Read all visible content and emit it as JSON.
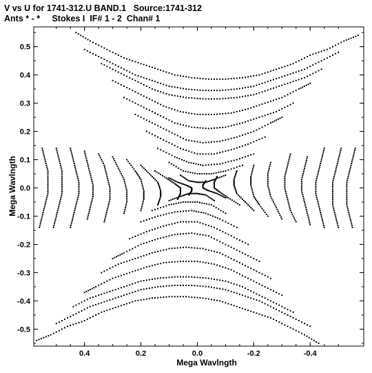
{
  "title_line1": "V vs U for 1741-312.U BAND.1   Source:1741-312",
  "title_line2": "Ants * - *     Stokes I  IF# 1 - 2  Chan# 1",
  "chart_data": {
    "type": "scatter",
    "title": "V vs U for 1741-312.U BAND.1   Source:1741-312",
    "subtitle": "Ants * - *     Stokes I  IF# 1 - 2  Chan# 1",
    "xlabel": "Mega Wavlngth",
    "ylabel": "Mega Wavlngth",
    "xlim": [
      0.58,
      -0.59
    ],
    "ylim": [
      -0.56,
      0.57
    ],
    "x_inverted": true,
    "xticks": [
      0.4,
      0.2,
      0.0,
      -0.2,
      -0.4
    ],
    "xtick_labels": [
      "0.4",
      "0.2",
      "0.0",
      "-0.2",
      "-0.4"
    ],
    "yticks": [
      0.5,
      0.4,
      0.3,
      0.2,
      0.1,
      0.0,
      -0.1,
      -0.2,
      -0.3,
      -0.4,
      -0.5
    ],
    "ytick_labels": [
      "0.5",
      "0.4",
      "0.3",
      "0.2",
      "0.1",
      "0.0",
      "-0.1",
      "-0.2",
      "-0.3",
      "-0.4",
      "-0.5"
    ],
    "grid": false,
    "marker_color": "#000000",
    "symmetry": "point-symmetric about origin (u,v) and (-u,-v)",
    "series": [
      {
        "tracks": [
          {
            "points": [
              [
                0.43,
                0.55
              ],
              [
                0.38,
                0.52
              ],
              [
                0.32,
                0.49
              ],
              [
                0.26,
                0.46
              ],
              [
                0.2,
                0.44
              ],
              [
                0.14,
                0.42
              ],
              [
                0.08,
                0.4
              ],
              [
                0.02,
                0.39
              ],
              [
                -0.04,
                0.385
              ],
              [
                -0.1,
                0.385
              ],
              [
                -0.16,
                0.39
              ],
              [
                -0.22,
                0.4
              ],
              [
                -0.28,
                0.42
              ],
              [
                -0.34,
                0.44
              ],
              [
                -0.4,
                0.47
              ],
              [
                -0.46,
                0.49
              ],
              [
                -0.52,
                0.52
              ],
              [
                -0.57,
                0.54
              ]
            ]
          },
          {
            "points": [
              [
                0.4,
                0.49
              ],
              [
                0.34,
                0.46
              ],
              [
                0.28,
                0.43
              ],
              [
                0.22,
                0.4
              ],
              [
                0.16,
                0.38
              ],
              [
                0.1,
                0.36
              ],
              [
                0.04,
                0.35
              ],
              [
                -0.02,
                0.345
              ],
              [
                -0.08,
                0.345
              ],
              [
                -0.14,
                0.35
              ],
              [
                -0.2,
                0.36
              ],
              [
                -0.26,
                0.38
              ],
              [
                -0.32,
                0.4
              ],
              [
                -0.38,
                0.42
              ],
              [
                -0.44,
                0.45
              ],
              [
                -0.5,
                0.48
              ]
            ]
          },
          {
            "points": [
              [
                0.34,
                0.44
              ],
              [
                0.28,
                0.41
              ],
              [
                0.22,
                0.38
              ],
              [
                0.16,
                0.35
              ],
              [
                0.1,
                0.33
              ],
              [
                0.04,
                0.32
              ],
              [
                -0.02,
                0.315
              ],
              [
                -0.08,
                0.315
              ],
              [
                -0.14,
                0.32
              ],
              [
                -0.2,
                0.33
              ],
              [
                -0.26,
                0.35
              ],
              [
                -0.32,
                0.37
              ],
              [
                -0.38,
                0.39
              ],
              [
                -0.44,
                0.42
              ]
            ]
          },
          {
            "points": [
              [
                0.3,
                0.38
              ],
              [
                0.24,
                0.35
              ],
              [
                0.18,
                0.32
              ],
              [
                0.12,
                0.29
              ],
              [
                0.06,
                0.27
              ],
              [
                0.0,
                0.26
              ],
              [
                -0.06,
                0.26
              ],
              [
                -0.12,
                0.265
              ],
              [
                -0.18,
                0.28
              ],
              [
                -0.24,
                0.3
              ],
              [
                -0.3,
                0.32
              ],
              [
                -0.36,
                0.35
              ],
              [
                -0.4,
                0.37
              ]
            ]
          },
          {
            "points": [
              [
                0.26,
                0.32
              ],
              [
                0.2,
                0.29
              ],
              [
                0.14,
                0.26
              ],
              [
                0.08,
                0.23
              ],
              [
                0.02,
                0.215
              ],
              [
                -0.04,
                0.21
              ],
              [
                -0.1,
                0.215
              ],
              [
                -0.16,
                0.23
              ],
              [
                -0.22,
                0.25
              ],
              [
                -0.28,
                0.27
              ],
              [
                -0.34,
                0.3
              ]
            ]
          },
          {
            "points": [
              [
                0.22,
                0.26
              ],
              [
                0.16,
                0.23
              ],
              [
                0.1,
                0.2
              ],
              [
                0.04,
                0.17
              ],
              [
                -0.02,
                0.16
              ],
              [
                -0.08,
                0.165
              ],
              [
                -0.14,
                0.18
              ],
              [
                -0.2,
                0.2
              ],
              [
                -0.26,
                0.23
              ],
              [
                -0.3,
                0.25
              ]
            ]
          },
          {
            "points": [
              [
                0.18,
                0.2
              ],
              [
                0.12,
                0.17
              ],
              [
                0.06,
                0.14
              ],
              [
                0.0,
                0.12
              ],
              [
                -0.06,
                0.12
              ],
              [
                -0.12,
                0.135
              ],
              [
                -0.18,
                0.155
              ],
              [
                -0.24,
                0.18
              ]
            ]
          },
          {
            "points": [
              [
                0.14,
                0.14
              ],
              [
                0.08,
                0.11
              ],
              [
                0.03,
                0.09
              ],
              [
                -0.02,
                0.08
              ],
              [
                -0.08,
                0.085
              ],
              [
                -0.14,
                0.1
              ],
              [
                -0.2,
                0.12
              ]
            ]
          },
          {
            "points": [
              [
                0.1,
                0.09
              ],
              [
                0.05,
                0.06
              ],
              [
                0.0,
                0.05
              ],
              [
                -0.05,
                0.05
              ],
              [
                -0.1,
                0.06
              ],
              [
                -0.16,
                0.08
              ]
            ]
          },
          {
            "points": [
              [
                0.06,
                0.045
              ],
              [
                0.03,
                0.025
              ],
              [
                0.0,
                0.02
              ],
              [
                -0.03,
                0.02
              ],
              [
                -0.06,
                0.03
              ],
              [
                -0.1,
                0.045
              ]
            ]
          },
          {
            "points": [
              [
                0.55,
                0.14
              ],
              [
                0.54,
                0.1
              ],
              [
                0.53,
                0.06
              ],
              [
                0.53,
                0.02
              ],
              [
                0.53,
                -0.02
              ],
              [
                0.54,
                -0.06
              ],
              [
                0.55,
                -0.1
              ],
              [
                0.56,
                -0.14
              ]
            ]
          },
          {
            "points": [
              [
                0.5,
                0.14
              ],
              [
                0.49,
                0.1
              ],
              [
                0.48,
                0.06
              ],
              [
                0.48,
                0.02
              ],
              [
                0.48,
                -0.02
              ],
              [
                0.49,
                -0.06
              ],
              [
                0.5,
                -0.1
              ],
              [
                0.51,
                -0.14
              ]
            ]
          },
          {
            "points": [
              [
                0.45,
                0.14
              ],
              [
                0.44,
                0.1
              ],
              [
                0.43,
                0.06
              ],
              [
                0.42,
                0.02
              ],
              [
                0.42,
                -0.02
              ],
              [
                0.43,
                -0.06
              ],
              [
                0.44,
                -0.1
              ],
              [
                0.45,
                -0.14
              ]
            ]
          },
          {
            "points": [
              [
                0.4,
                0.13
              ],
              [
                0.39,
                0.09
              ],
              [
                0.38,
                0.05
              ],
              [
                0.37,
                0.01
              ],
              [
                0.37,
                -0.03
              ],
              [
                0.38,
                -0.07
              ],
              [
                0.39,
                -0.11
              ]
            ]
          },
          {
            "points": [
              [
                0.35,
                0.12
              ],
              [
                0.33,
                0.08
              ],
              [
                0.32,
                0.04
              ],
              [
                0.31,
                0.0
              ],
              [
                0.31,
                -0.04
              ],
              [
                0.32,
                -0.08
              ],
              [
                0.33,
                -0.12
              ]
            ]
          },
          {
            "points": [
              [
                0.3,
                0.11
              ],
              [
                0.28,
                0.07
              ],
              [
                0.26,
                0.03
              ],
              [
                0.25,
                -0.01
              ],
              [
                0.25,
                -0.05
              ],
              [
                0.26,
                -0.09
              ]
            ]
          },
          {
            "points": [
              [
                0.25,
                0.1
              ],
              [
                0.22,
                0.06
              ],
              [
                0.2,
                0.03
              ],
              [
                0.19,
                -0.01
              ],
              [
                0.19,
                -0.04
              ],
              [
                0.2,
                -0.08
              ]
            ]
          },
          {
            "points": [
              [
                0.2,
                0.08
              ],
              [
                0.17,
                0.05
              ],
              [
                0.14,
                0.02
              ],
              [
                0.13,
                -0.01
              ],
              [
                0.13,
                -0.03
              ],
              [
                0.14,
                -0.06
              ]
            ]
          },
          {
            "points": [
              [
                0.15,
                0.06
              ],
              [
                0.11,
                0.035
              ],
              [
                0.08,
                0.015
              ],
              [
                0.06,
                0.0
              ],
              [
                0.06,
                -0.02
              ],
              [
                0.07,
                -0.04
              ]
            ]
          },
          {
            "points": [
              [
                0.1,
                0.035
              ],
              [
                0.07,
                0.02
              ],
              [
                0.04,
                0.01
              ],
              [
                0.02,
                0.0
              ],
              [
                0.02,
                -0.01
              ],
              [
                0.03,
                -0.025
              ]
            ]
          }
        ]
      }
    ]
  }
}
